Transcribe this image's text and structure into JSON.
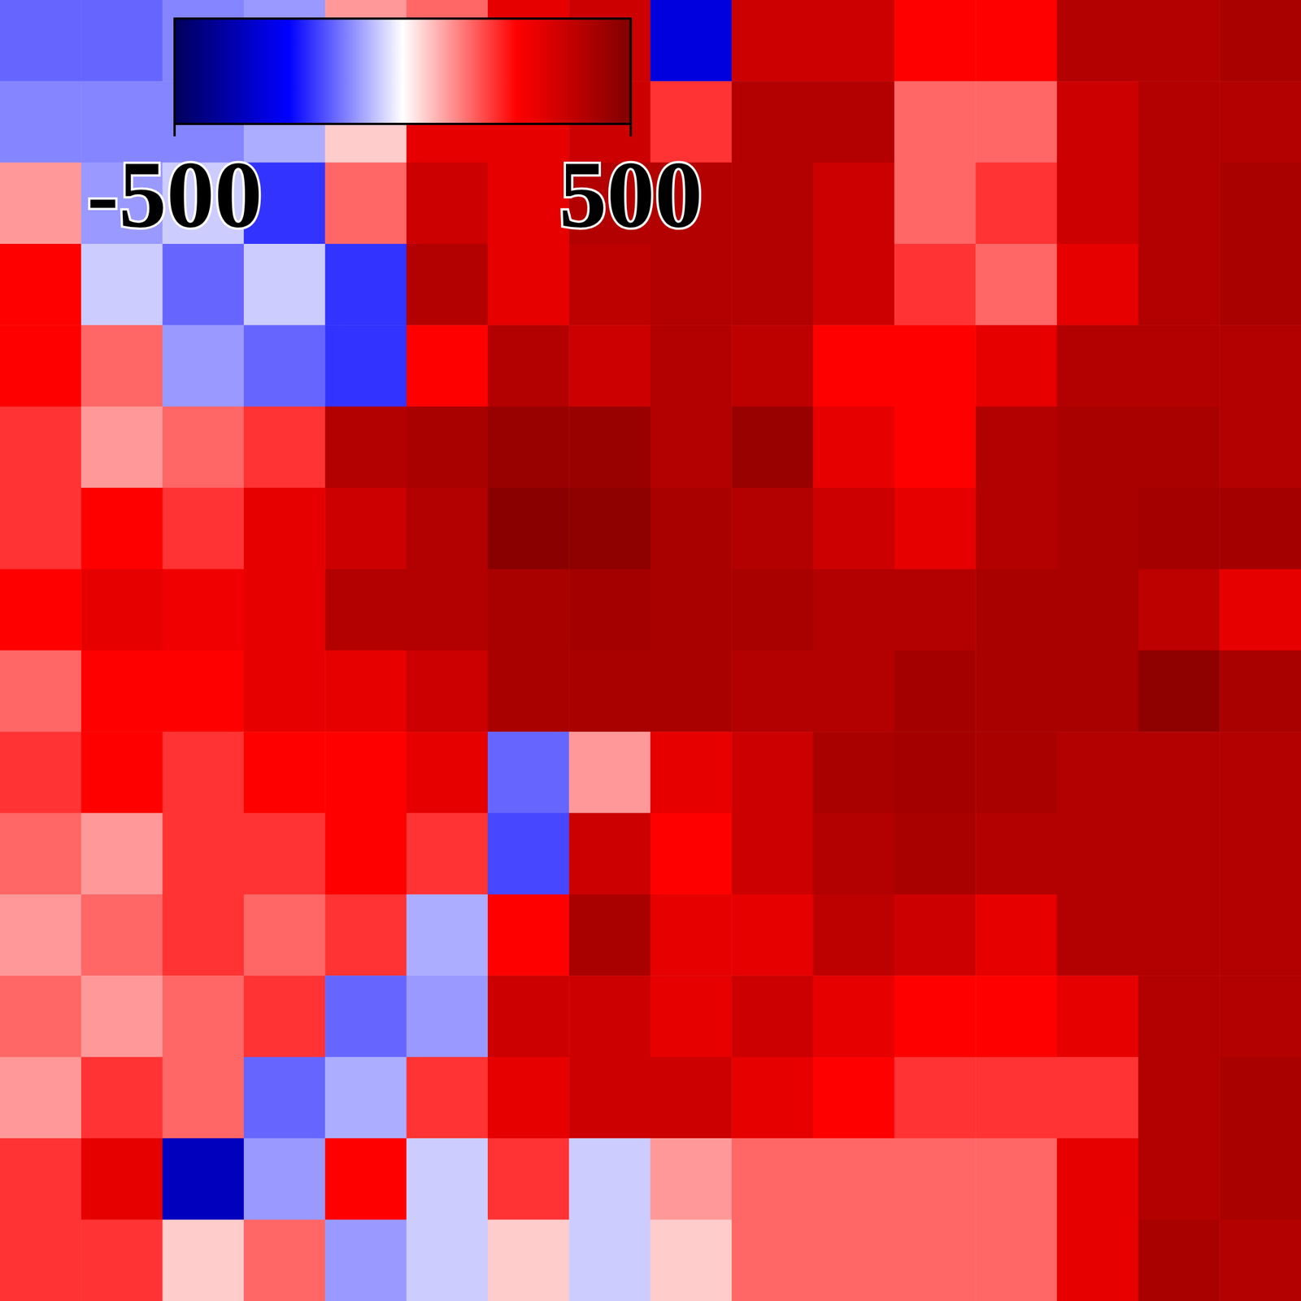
{
  "chart_data": {
    "type": "heatmap",
    "tick_labels": false,
    "cells": [
      [
        -150,
        -150,
        -120,
        -100,
        100,
        150,
        300,
        350,
        -300,
        350,
        350,
        250,
        250,
        400,
        400,
        420
      ],
      [
        -120,
        -120,
        -120,
        -80,
        50,
        300,
        300,
        350,
        200,
        400,
        400,
        150,
        150,
        350,
        400,
        400
      ],
      [
        100,
        -100,
        -50,
        -200,
        150,
        350,
        300,
        400,
        400,
        400,
        350,
        150,
        200,
        350,
        400,
        420
      ],
      [
        250,
        -50,
        -150,
        -50,
        -200,
        400,
        300,
        380,
        400,
        400,
        350,
        200,
        150,
        300,
        400,
        420
      ],
      [
        250,
        150,
        -100,
        -150,
        -200,
        250,
        400,
        350,
        400,
        380,
        250,
        250,
        300,
        400,
        400,
        400
      ],
      [
        200,
        100,
        150,
        200,
        400,
        420,
        450,
        450,
        400,
        450,
        300,
        250,
        400,
        420,
        420,
        400
      ],
      [
        200,
        250,
        200,
        300,
        350,
        400,
        480,
        470,
        420,
        400,
        350,
        300,
        400,
        420,
        430,
        430
      ],
      [
        250,
        300,
        280,
        300,
        400,
        400,
        420,
        430,
        420,
        420,
        400,
        400,
        420,
        420,
        380,
        300
      ],
      [
        150,
        250,
        250,
        300,
        300,
        350,
        420,
        420,
        420,
        400,
        400,
        430,
        420,
        420,
        470,
        420
      ],
      [
        200,
        250,
        200,
        250,
        250,
        300,
        -150,
        100,
        300,
        350,
        420,
        430,
        420,
        400,
        400,
        400
      ],
      [
        150,
        100,
        200,
        200,
        250,
        200,
        -180,
        350,
        250,
        350,
        400,
        420,
        400,
        400,
        400,
        400
      ],
      [
        100,
        150,
        200,
        150,
        200,
        -80,
        250,
        420,
        300,
        300,
        380,
        350,
        300,
        400,
        400,
        400
      ],
      [
        150,
        100,
        150,
        200,
        -150,
        -100,
        350,
        350,
        300,
        350,
        300,
        250,
        250,
        300,
        400,
        400
      ],
      [
        100,
        200,
        150,
        -150,
        -80,
        200,
        300,
        350,
        350,
        300,
        250,
        200,
        200,
        200,
        400,
        420
      ],
      [
        200,
        300,
        -350,
        -100,
        250,
        -50,
        200,
        -50,
        100,
        150,
        150,
        150,
        150,
        300,
        400,
        420
      ],
      [
        200,
        200,
        50,
        150,
        -100,
        -50,
        50,
        -50,
        50,
        150,
        150,
        150,
        150,
        300,
        420,
        400
      ]
    ],
    "colorbar": {
      "range": [
        -500,
        500
      ],
      "ticks": [
        -500,
        500
      ]
    }
  }
}
